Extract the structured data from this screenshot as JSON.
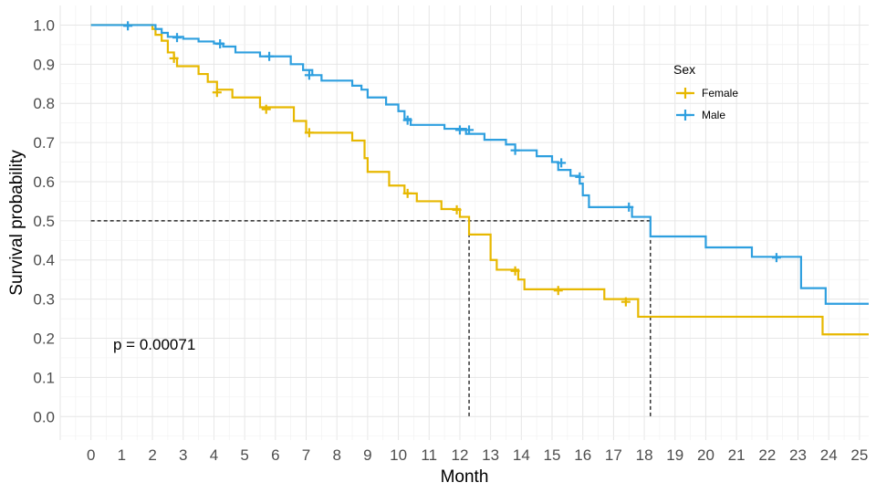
{
  "chart_data": {
    "type": "line",
    "subtype": "kaplan-meier step",
    "xlabel": "Month",
    "ylabel": "Survival probability",
    "xlim": [
      -1,
      25.3
    ],
    "ylim": [
      -0.06,
      1.05
    ],
    "x_ticks": [
      "0",
      "1",
      "2",
      "3",
      "4",
      "5",
      "6",
      "7",
      "8",
      "9",
      "10",
      "11",
      "12",
      "13",
      "14",
      "15",
      "16",
      "17",
      "18",
      "19",
      "20",
      "21",
      "22",
      "23",
      "24",
      "25"
    ],
    "y_ticks": [
      "0.0",
      "0.1",
      "0.2",
      "0.3",
      "0.4",
      "0.5",
      "0.6",
      "0.7",
      "0.8",
      "0.9",
      "1.0"
    ],
    "grid": true,
    "legend": {
      "title": "Sex",
      "position": "right-top"
    },
    "annotation": "p = 0.00071",
    "median_line": {
      "y": 0.5,
      "x_female": 12.3,
      "x_male": 18.2
    },
    "series": [
      {
        "name": "Female",
        "color": "#E7B800",
        "steps": [
          [
            0,
            1.0
          ],
          [
            2.0,
            0.99
          ],
          [
            2.1,
            0.975
          ],
          [
            2.3,
            0.96
          ],
          [
            2.5,
            0.93
          ],
          [
            2.7,
            0.915
          ],
          [
            2.8,
            0.895
          ],
          [
            3.5,
            0.875
          ],
          [
            3.8,
            0.855
          ],
          [
            4.1,
            0.835
          ],
          [
            4.6,
            0.815
          ],
          [
            5.5,
            0.79
          ],
          [
            6.6,
            0.755
          ],
          [
            7.0,
            0.725
          ],
          [
            8.5,
            0.705
          ],
          [
            8.9,
            0.66
          ],
          [
            9.0,
            0.625
          ],
          [
            9.7,
            0.59
          ],
          [
            10.2,
            0.57
          ],
          [
            10.6,
            0.55
          ],
          [
            11.4,
            0.53
          ],
          [
            12.0,
            0.51
          ],
          [
            12.3,
            0.465
          ],
          [
            13.0,
            0.4
          ],
          [
            13.2,
            0.375
          ],
          [
            13.9,
            0.35
          ],
          [
            14.1,
            0.325
          ],
          [
            16.7,
            0.3
          ],
          [
            17.8,
            0.255
          ],
          [
            23.8,
            0.21
          ],
          [
            25.3,
            0.21
          ]
        ],
        "censors": [
          [
            2.7,
            0.915
          ],
          [
            4.1,
            0.828
          ],
          [
            5.7,
            0.785
          ],
          [
            7.1,
            0.725
          ],
          [
            10.3,
            0.57
          ],
          [
            11.9,
            0.528
          ],
          [
            13.8,
            0.372
          ],
          [
            15.2,
            0.322
          ],
          [
            17.4,
            0.293
          ]
        ]
      },
      {
        "name": "Male",
        "color": "#2E9FDF",
        "steps": [
          [
            0,
            1.0
          ],
          [
            2.1,
            0.99
          ],
          [
            2.3,
            0.98
          ],
          [
            2.5,
            0.97
          ],
          [
            3.0,
            0.965
          ],
          [
            3.5,
            0.958
          ],
          [
            4.0,
            0.953
          ],
          [
            4.3,
            0.945
          ],
          [
            4.7,
            0.93
          ],
          [
            5.5,
            0.92
          ],
          [
            6.5,
            0.9
          ],
          [
            6.9,
            0.885
          ],
          [
            7.2,
            0.872
          ],
          [
            7.5,
            0.858
          ],
          [
            8.5,
            0.845
          ],
          [
            8.8,
            0.835
          ],
          [
            9.0,
            0.815
          ],
          [
            9.6,
            0.797
          ],
          [
            10.0,
            0.78
          ],
          [
            10.2,
            0.76
          ],
          [
            10.4,
            0.745
          ],
          [
            11.5,
            0.735
          ],
          [
            12.2,
            0.722
          ],
          [
            12.8,
            0.707
          ],
          [
            13.5,
            0.695
          ],
          [
            13.8,
            0.68
          ],
          [
            14.5,
            0.665
          ],
          [
            15.0,
            0.65
          ],
          [
            15.2,
            0.63
          ],
          [
            15.6,
            0.615
          ],
          [
            15.9,
            0.595
          ],
          [
            16.0,
            0.565
          ],
          [
            16.2,
            0.535
          ],
          [
            17.5,
            0.535
          ],
          [
            17.6,
            0.51
          ],
          [
            18.1,
            0.51
          ],
          [
            18.2,
            0.46
          ],
          [
            20.0,
            0.432
          ],
          [
            21.5,
            0.408
          ],
          [
            23.1,
            0.328
          ],
          [
            23.9,
            0.288
          ],
          [
            25.3,
            0.288
          ]
        ],
        "censors": [
          [
            1.2,
            0.998
          ],
          [
            2.8,
            0.968
          ],
          [
            4.2,
            0.952
          ],
          [
            5.8,
            0.92
          ],
          [
            7.1,
            0.872
          ],
          [
            10.3,
            0.757
          ],
          [
            12.0,
            0.732
          ],
          [
            12.3,
            0.732
          ],
          [
            13.8,
            0.68
          ],
          [
            15.3,
            0.648
          ],
          [
            15.9,
            0.612
          ],
          [
            17.5,
            0.535
          ],
          [
            22.3,
            0.406
          ]
        ]
      }
    ]
  }
}
